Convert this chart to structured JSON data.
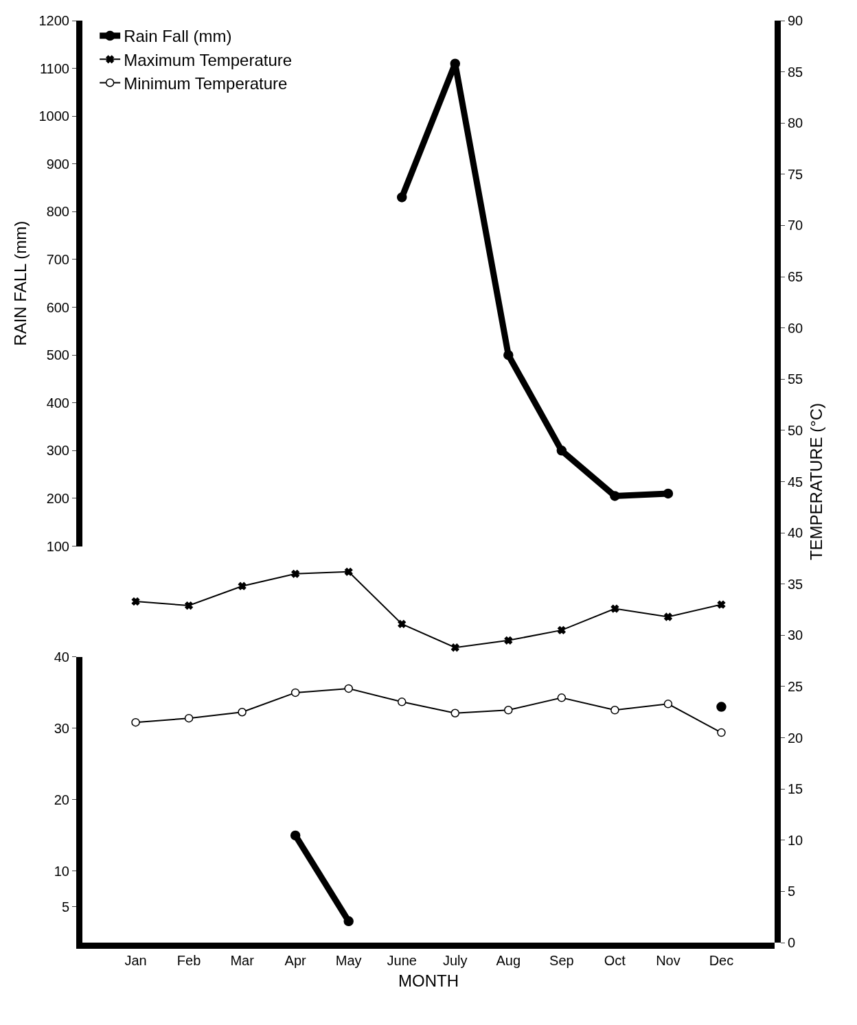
{
  "chart_data": [
    {
      "type": "line",
      "ylabel": "RAIN FALL (mm)",
      "tick_labels": "y",
      "categories": [
        "Jan",
        "Feb",
        "Mar",
        "Apr",
        "May",
        "June",
        "July",
        "Aug",
        "Sep",
        "Oct",
        "Nov",
        "Dec"
      ],
      "ylim": [
        100,
        1200
      ],
      "yticks": [
        100,
        200,
        300,
        400,
        500,
        600,
        700,
        800,
        900,
        1000,
        1100,
        1200
      ],
      "legend": "top left",
      "series": [
        {
          "name": "Rain Fall (mm)",
          "color": "#000000",
          "marker": "circle",
          "line_style": "solid",
          "values": [
            null,
            null,
            null,
            null,
            null,
            830,
            1110,
            500,
            300,
            205,
            210,
            null
          ]
        }
      ]
    },
    {
      "type": "line",
      "xlabel": "MONTH",
      "categories": [
        "Jan",
        "Feb",
        "Mar",
        "Apr",
        "May",
        "June",
        "July",
        "Aug",
        "Sep",
        "Oct",
        "Nov",
        "Dec"
      ],
      "ylim": [
        0,
        40
      ],
      "yticks": [
        5,
        10,
        20,
        30,
        40
      ],
      "series": [
        {
          "color": "#000000",
          "marker": "circle",
          "line_style": "solid",
          "values": [
            null,
            null,
            null,
            15,
            3,
            null,
            null,
            null,
            null,
            null,
            null,
            33
          ]
        }
      ]
    },
    {
      "type": "line",
      "y2label": "TEMPERATURE (°C)",
      "tick_labels": "y",
      "categories": [
        "Jan",
        "Feb",
        "Mar",
        "Apr",
        "May",
        "June",
        "July",
        "Aug",
        "Sep",
        "Oct",
        "Nov",
        "Dec"
      ],
      "y2lim": [
        0,
        90
      ],
      "y2ticks": [
        0,
        5,
        10,
        15,
        20,
        25,
        30,
        35,
        40,
        45,
        50,
        55,
        60,
        65,
        70,
        75,
        80,
        85,
        90
      ],
      "legend": "top left",
      "series": [
        {
          "name": "Maximum Temperature",
          "color": "#000000",
          "axis": "y2",
          "marker": "cross",
          "line_style": "solid",
          "values": [
            33.3,
            32.9,
            34.8,
            36.0,
            36.2,
            31.1,
            28.8,
            29.5,
            30.5,
            32.6,
            31.8,
            33.0
          ]
        },
        {
          "name": "Minimum Temperature",
          "color": "#000000",
          "axis": "y2",
          "marker": "circle",
          "line_style": "solid",
          "values": [
            21.5,
            21.9,
            22.5,
            24.4,
            24.8,
            23.5,
            22.4,
            22.7,
            23.9,
            22.7,
            23.3,
            20.5
          ]
        }
      ]
    }
  ]
}
